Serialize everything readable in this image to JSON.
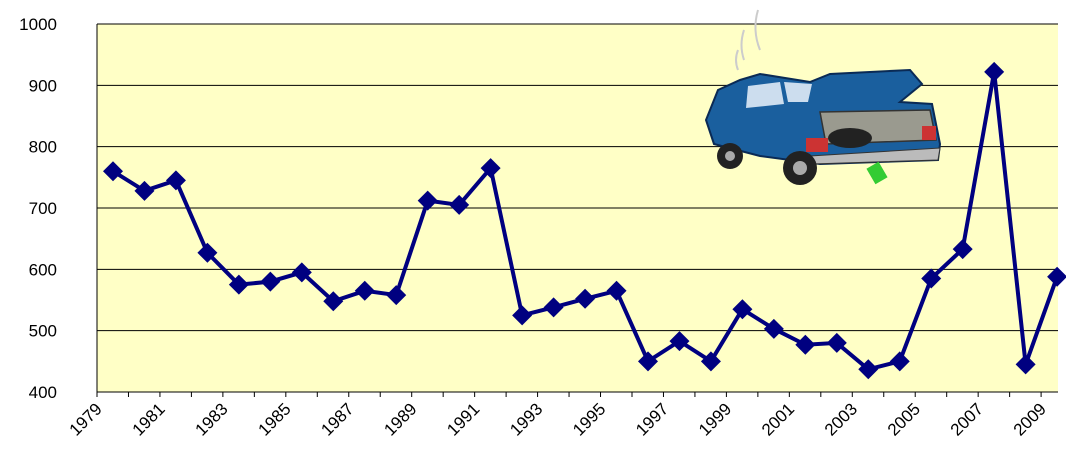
{
  "chart_data": {
    "type": "line",
    "categories": [
      "1979",
      null,
      "1981",
      null,
      "1983",
      null,
      "1985",
      null,
      "1987",
      null,
      "1989",
      null,
      "1991",
      null,
      "1993",
      null,
      "1995",
      null,
      "1997",
      null,
      "1999",
      null,
      "2001",
      null,
      "2003",
      null,
      "2005",
      null,
      "2007",
      null,
      "2009"
    ],
    "series": [
      {
        "color": "#000080",
        "values": [
          760,
          728,
          745,
          627,
          575,
          580,
          595,
          548,
          565,
          558,
          712,
          705,
          765,
          525,
          538,
          552,
          565,
          450,
          483,
          450,
          535,
          503,
          477,
          480,
          437,
          450,
          585,
          633,
          922,
          445,
          588
        ]
      }
    ],
    "ylim": [
      400,
      1000
    ],
    "yticks": [
      400,
      500,
      600,
      700,
      800,
      900,
      1000
    ],
    "grid": true
  }
}
